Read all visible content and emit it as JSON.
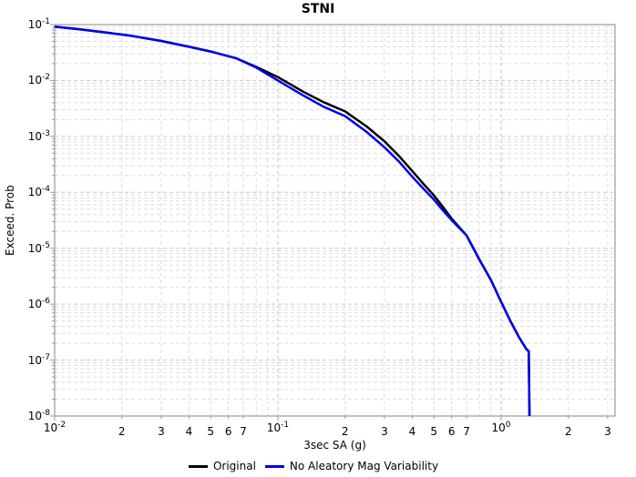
{
  "chart_data": {
    "type": "line",
    "title": "STNI",
    "xlabel": "3sec SA (g)",
    "ylabel": "Exceed. Prob",
    "x_scale": "log",
    "y_scale": "log",
    "x_range": [
      0.01,
      3.24
    ],
    "y_range": [
      1e-08,
      0.1
    ],
    "grid": true,
    "legend_position": "bottom",
    "colors": {
      "grid_minor": "#dedede",
      "grid_major": "#c6c6c6",
      "frame": "#9a9a9a",
      "tick": "#9a9a9a"
    },
    "x_ticks": [
      {
        "v": 0.01,
        "exp": -2
      },
      {
        "v": 0.02,
        "label": "2"
      },
      {
        "v": 0.03,
        "label": "3"
      },
      {
        "v": 0.04,
        "label": "4"
      },
      {
        "v": 0.05,
        "label": "5"
      },
      {
        "v": 0.06,
        "label": "6"
      },
      {
        "v": 0.07,
        "label": "7"
      },
      {
        "v": 0.1,
        "exp": -1
      },
      {
        "v": 0.2,
        "label": "2"
      },
      {
        "v": 0.3,
        "label": "3"
      },
      {
        "v": 0.4,
        "label": "4"
      },
      {
        "v": 0.5,
        "label": "5"
      },
      {
        "v": 0.6,
        "label": "6"
      },
      {
        "v": 0.7,
        "label": "7"
      },
      {
        "v": 1.0,
        "exp": 0
      },
      {
        "v": 2.0,
        "label": "2"
      },
      {
        "v": 3.0,
        "label": "3"
      }
    ],
    "y_tick_exponents": [
      -1,
      -2,
      -3,
      -4,
      -5,
      -6,
      -7,
      -8
    ],
    "series": [
      {
        "name": "Original",
        "color": "#000000",
        "points": [
          [
            0.01,
            0.092
          ],
          [
            0.013,
            0.082
          ],
          [
            0.017,
            0.072
          ],
          [
            0.022,
            0.063
          ],
          [
            0.03,
            0.051
          ],
          [
            0.04,
            0.04
          ],
          [
            0.05,
            0.033
          ],
          [
            0.065,
            0.025
          ],
          [
            0.08,
            0.0175
          ],
          [
            0.1,
            0.0115
          ],
          [
            0.13,
            0.0063
          ],
          [
            0.16,
            0.0041
          ],
          [
            0.2,
            0.0028
          ],
          [
            0.25,
            0.0015
          ],
          [
            0.3,
            0.00082
          ],
          [
            0.35,
            0.00044
          ],
          [
            0.4,
            0.00024
          ],
          [
            0.45,
            0.00014
          ],
          [
            0.5,
            8.8e-05
          ],
          [
            0.55,
            5.4e-05
          ],
          [
            0.6,
            3.4e-05
          ],
          [
            0.7,
            1.7e-05
          ],
          [
            0.8,
            6.2e-06
          ],
          [
            0.9,
            2.7e-06
          ],
          [
            1.0,
            1.1e-06
          ],
          [
            1.1,
            5e-07
          ],
          [
            1.2,
            2.6e-07
          ],
          [
            1.3,
            1.55e-07
          ],
          [
            1.33,
            1.45e-07
          ],
          [
            1.34,
            1e-08
          ]
        ]
      },
      {
        "name": "No Aleatory Mag Variability",
        "color": "#0000ee",
        "points": [
          [
            0.01,
            0.092
          ],
          [
            0.013,
            0.082
          ],
          [
            0.017,
            0.072
          ],
          [
            0.022,
            0.063
          ],
          [
            0.03,
            0.051
          ],
          [
            0.04,
            0.04
          ],
          [
            0.05,
            0.033
          ],
          [
            0.065,
            0.025
          ],
          [
            0.08,
            0.017
          ],
          [
            0.1,
            0.01
          ],
          [
            0.13,
            0.0054
          ],
          [
            0.16,
            0.0034
          ],
          [
            0.2,
            0.0023
          ],
          [
            0.25,
            0.0012
          ],
          [
            0.3,
            0.00064
          ],
          [
            0.35,
            0.00035
          ],
          [
            0.4,
            0.00019
          ],
          [
            0.45,
            0.000115
          ],
          [
            0.5,
            7.4e-05
          ],
          [
            0.55,
            4.7e-05
          ],
          [
            0.6,
            3.2e-05
          ],
          [
            0.7,
            1.7e-05
          ],
          [
            0.8,
            6.2e-06
          ],
          [
            0.9,
            2.7e-06
          ],
          [
            1.0,
            1.1e-06
          ],
          [
            1.1,
            5e-07
          ],
          [
            1.2,
            2.6e-07
          ],
          [
            1.3,
            1.55e-07
          ],
          [
            1.33,
            1.45e-07
          ],
          [
            1.34,
            1e-08
          ]
        ]
      }
    ]
  }
}
